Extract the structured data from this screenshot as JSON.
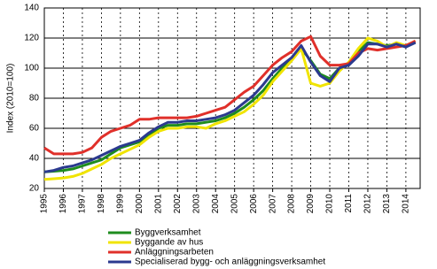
{
  "chart_data": {
    "type": "line",
    "y_label": "Index (2010=100)",
    "x": [
      1995,
      1995.5,
      1996,
      1996.5,
      1997,
      1997.5,
      1998,
      1998.5,
      1999,
      1999.5,
      2000,
      2000.5,
      2001,
      2001.5,
      2002,
      2002.5,
      2003,
      2003.5,
      2004,
      2004.5,
      2005,
      2005.5,
      2006,
      2006.5,
      2007,
      2007.5,
      2008,
      2008.5,
      2009,
      2009.5,
      2010,
      2010.5,
      2011,
      2011.5,
      2012,
      2012.5,
      2013,
      2013.5,
      2014,
      2014.5
    ],
    "series": [
      {
        "name": "Byggverksamhet",
        "color": "#1e8c1e",
        "values": [
          31,
          31.5,
          32,
          33,
          35,
          37,
          39,
          43,
          47,
          49,
          51,
          55,
          60,
          62,
          62,
          63,
          63,
          64,
          65,
          67,
          70,
          74,
          79,
          85,
          93,
          100,
          106,
          113,
          105,
          96,
          93,
          100,
          103,
          111,
          117,
          116,
          115,
          116,
          115,
          117
        ]
      },
      {
        "name": "Byggande av hus",
        "color": "#f0e400",
        "values": [
          26,
          26.5,
          27,
          28,
          30,
          33,
          36,
          40,
          43,
          46,
          49,
          54,
          58,
          60,
          60,
          61,
          61,
          60,
          63,
          65,
          68,
          71,
          76,
          82,
          91,
          98,
          105,
          113,
          90,
          88,
          90,
          98,
          104,
          113,
          120,
          118,
          114,
          117,
          115,
          118
        ]
      },
      {
        "name": "Anläggningsarbeten",
        "color": "#e0302a",
        "values": [
          47,
          43,
          43,
          43,
          44,
          47,
          54,
          58,
          60,
          62,
          66,
          66,
          67,
          67,
          67,
          67,
          68,
          70,
          72,
          74,
          79,
          84,
          88,
          95,
          102,
          107,
          111,
          118,
          121,
          108,
          102,
          102,
          103,
          110,
          113,
          112,
          113,
          114,
          115,
          118
        ]
      },
      {
        "name": "Specialiserad bygg- och anläggningsverksamhet",
        "color": "#2b3a8f",
        "values": [
          31,
          32,
          34,
          35,
          37,
          39,
          42,
          45,
          48,
          50,
          52,
          57,
          61,
          64,
          64,
          65,
          65,
          66,
          67,
          69,
          72,
          77,
          82,
          89,
          97,
          102,
          107,
          115,
          104,
          95,
          91,
          100,
          102,
          108,
          116,
          116,
          114,
          116,
          114,
          117
        ]
      }
    ],
    "xlim": [
      1995,
      2014.75
    ],
    "xticks": [
      1995,
      1996,
      1997,
      1998,
      1999,
      2000,
      2001,
      2002,
      2003,
      2004,
      2005,
      2006,
      2007,
      2008,
      2009,
      2010,
      2011,
      2012,
      2013,
      2014
    ],
    "ylim": [
      20,
      140
    ],
    "yticks": [
      20,
      40,
      60,
      80,
      100,
      120,
      140
    ],
    "grid": true
  }
}
